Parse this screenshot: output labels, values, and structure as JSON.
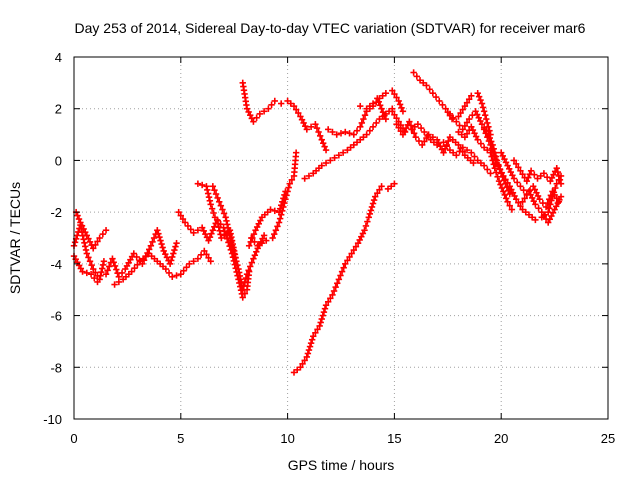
{
  "chart_data": {
    "type": "scatter",
    "title": "Day 253 of 2014, Sidereal Day-to-day VTEC variation (SDTVAR) for receiver mar6",
    "xlabel": "GPS time / hours",
    "ylabel": "SDTVAR / TECUs",
    "xlim": [
      0,
      25
    ],
    "ylim": [
      -10,
      4
    ],
    "xticks": [
      "0",
      "5",
      "10",
      "15",
      "20",
      "25"
    ],
    "yticks": [
      "4",
      "2",
      "0",
      "-2",
      "-4",
      "-6",
      "-8",
      "-10"
    ],
    "grid": true,
    "marker": "+",
    "color": "#ff0000",
    "series": [
      {
        "points": [
          [
            0,
            -3.3
          ],
          [
            0.3,
            -2.5
          ],
          [
            0.6,
            -3.6
          ],
          [
            0.9,
            -4.2
          ],
          [
            1.2,
            -4.6
          ],
          [
            1.4,
            -3.9
          ]
        ]
      },
      {
        "points": [
          [
            0,
            -3.7
          ],
          [
            0.4,
            -4.3
          ],
          [
            0.8,
            -4.4
          ],
          [
            1.1,
            -4.7
          ]
        ]
      },
      {
        "points": [
          [
            0.1,
            -2.0
          ],
          [
            0.3,
            -2.4
          ],
          [
            0.6,
            -2.9
          ],
          [
            0.9,
            -3.4
          ],
          [
            1.2,
            -3.0
          ],
          [
            1.5,
            -2.7
          ]
        ]
      },
      {
        "points": [
          [
            1.5,
            -4.4
          ],
          [
            1.8,
            -3.8
          ],
          [
            2.1,
            -4.5
          ],
          [
            2.4,
            -4.2
          ],
          [
            2.8,
            -3.6
          ],
          [
            3.2,
            -4.0
          ],
          [
            3.6,
            -3.3
          ],
          [
            3.9,
            -2.7
          ],
          [
            4.2,
            -3.5
          ],
          [
            4.5,
            -4.0
          ],
          [
            4.8,
            -3.2
          ]
        ]
      },
      {
        "points": [
          [
            1.9,
            -4.8
          ],
          [
            2.3,
            -4.6
          ],
          [
            2.7,
            -4.3
          ],
          [
            3.1,
            -3.9
          ],
          [
            3.5,
            -3.6
          ],
          [
            3.9,
            -3.9
          ],
          [
            4.3,
            -4.2
          ],
          [
            4.6,
            -4.5
          ],
          [
            5.0,
            -4.4
          ],
          [
            5.4,
            -4.0
          ],
          [
            5.8,
            -3.8
          ],
          [
            6.1,
            -3.5
          ],
          [
            6.4,
            -3.9
          ]
        ]
      },
      {
        "points": [
          [
            4.9,
            -2.0
          ],
          [
            5.2,
            -2.4
          ],
          [
            5.6,
            -2.8
          ],
          [
            6.0,
            -2.6
          ],
          [
            6.3,
            -3.1
          ],
          [
            6.7,
            -2.3
          ],
          [
            6.9,
            -3.0
          ],
          [
            7.3,
            -2.7
          ],
          [
            7.6,
            -3.9
          ]
        ]
      },
      {
        "points": [
          [
            5.8,
            -0.9
          ],
          [
            6.2,
            -1.0
          ],
          [
            6.4,
            -1.7
          ],
          [
            6.6,
            -2.2
          ],
          [
            7.0,
            -2.6
          ],
          [
            7.4,
            -3.6
          ],
          [
            7.7,
            -4.6
          ],
          [
            7.9,
            -5.3
          ],
          [
            8.1,
            -5.0
          ],
          [
            8.2,
            -4.3
          ]
        ]
      },
      {
        "points": [
          [
            6.5,
            -1.0
          ],
          [
            6.8,
            -1.6
          ],
          [
            7.1,
            -2.2
          ],
          [
            7.4,
            -3.3
          ],
          [
            7.7,
            -4.2
          ],
          [
            7.9,
            -5.0
          ],
          [
            8.1,
            -4.4
          ],
          [
            8.4,
            -3.8
          ],
          [
            8.6,
            -3.4
          ],
          [
            8.9,
            -2.9
          ]
        ]
      },
      {
        "points": [
          [
            7.9,
            3.0
          ],
          [
            8.1,
            2.0
          ],
          [
            8.4,
            1.5
          ],
          [
            8.7,
            1.8
          ],
          [
            9.1,
            2.0
          ],
          [
            9.4,
            2.3
          ],
          [
            9.7,
            2.2
          ],
          [
            10.0,
            2.3
          ],
          [
            10.3,
            2.1
          ],
          [
            10.6,
            1.7
          ],
          [
            10.9,
            1.2
          ],
          [
            11.3,
            1.4
          ],
          [
            11.6,
            0.8
          ],
          [
            11.8,
            0.4
          ]
        ]
      },
      {
        "points": [
          [
            8.3,
            -3.0
          ],
          [
            8.6,
            -3.3
          ],
          [
            9.0,
            -3.1
          ],
          [
            9.3,
            -3.0
          ],
          [
            9.6,
            -2.4
          ],
          [
            9.9,
            -1.5
          ],
          [
            10.1,
            -0.9
          ],
          [
            10.3,
            -0.6
          ],
          [
            10.4,
            0.3
          ]
        ]
      },
      {
        "points": [
          [
            8.2,
            -3.3
          ],
          [
            8.5,
            -2.7
          ],
          [
            8.8,
            -2.2
          ],
          [
            9.2,
            -1.9
          ],
          [
            9.6,
            -2.0
          ],
          [
            9.9,
            -1.2
          ]
        ]
      },
      {
        "points": [
          [
            10.3,
            -8.2
          ],
          [
            10.6,
            -8.0
          ],
          [
            10.9,
            -7.6
          ],
          [
            11.2,
            -6.8
          ],
          [
            11.5,
            -6.4
          ],
          [
            11.8,
            -5.6
          ],
          [
            12.1,
            -5.2
          ],
          [
            12.4,
            -4.6
          ],
          [
            12.7,
            -4.0
          ],
          [
            13.0,
            -3.6
          ],
          [
            13.3,
            -3.2
          ],
          [
            13.6,
            -2.7
          ],
          [
            13.8,
            -2.2
          ],
          [
            14.1,
            -1.4
          ],
          [
            14.4,
            -1.0
          ],
          [
            14.7,
            -1.1
          ],
          [
            15.0,
            -0.9
          ]
        ]
      },
      {
        "points": [
          [
            10.8,
            -0.7
          ],
          [
            11.2,
            -0.5
          ],
          [
            11.6,
            -0.2
          ],
          [
            12.0,
            0.0
          ],
          [
            12.4,
            0.2
          ],
          [
            12.8,
            0.4
          ],
          [
            13.1,
            0.6
          ],
          [
            13.4,
            0.8
          ],
          [
            13.7,
            1.0
          ],
          [
            14.0,
            1.3
          ],
          [
            14.3,
            1.6
          ],
          [
            14.6,
            1.8
          ],
          [
            14.9,
            2.0
          ]
        ]
      },
      {
        "points": [
          [
            11.9,
            1.2
          ],
          [
            12.3,
            1.0
          ],
          [
            12.7,
            1.1
          ],
          [
            13.1,
            1.0
          ],
          [
            13.4,
            1.3
          ],
          [
            13.7,
            1.9
          ],
          [
            14.0,
            2.1
          ],
          [
            14.3,
            2.4
          ],
          [
            14.6,
            2.6
          ],
          [
            14.9,
            2.7
          ],
          [
            15.2,
            2.3
          ],
          [
            15.4,
            1.9
          ]
        ]
      },
      {
        "points": [
          [
            13.4,
            2.1
          ],
          [
            13.7,
            2.0
          ],
          [
            14.0,
            2.2
          ],
          [
            14.2,
            2.4
          ],
          [
            14.4,
            2.0
          ],
          [
            14.6,
            1.6
          ]
        ]
      },
      {
        "points": [
          [
            14.9,
            1.9
          ],
          [
            15.2,
            1.5
          ],
          [
            15.5,
            1.1
          ],
          [
            15.8,
            1.2
          ],
          [
            16.1,
            1.4
          ],
          [
            16.4,
            1.1
          ],
          [
            16.7,
            0.8
          ],
          [
            17.0,
            0.6
          ],
          [
            17.3,
            0.7
          ],
          [
            17.6,
            0.4
          ],
          [
            17.9,
            0.2
          ],
          [
            18.2,
            0.5
          ],
          [
            18.6,
            0.3
          ],
          [
            18.9,
            0.0
          ],
          [
            19.2,
            -0.2
          ],
          [
            19.5,
            -0.5
          ]
        ]
      },
      {
        "points": [
          [
            15.1,
            1.4
          ],
          [
            15.4,
            1.0
          ],
          [
            15.7,
            1.5
          ],
          [
            16.0,
            0.9
          ],
          [
            16.3,
            0.6
          ],
          [
            16.6,
            1.0
          ],
          [
            17.0,
            0.8
          ],
          [
            17.3,
            0.3
          ],
          [
            17.6,
            0.9
          ],
          [
            18.0,
            0.6
          ],
          [
            18.3,
            0.2
          ],
          [
            18.7,
            -0.1
          ]
        ]
      },
      {
        "points": [
          [
            15.9,
            3.4
          ],
          [
            16.2,
            3.1
          ],
          [
            16.5,
            2.9
          ],
          [
            16.8,
            2.6
          ],
          [
            17.1,
            2.3
          ],
          [
            17.4,
            2.0
          ],
          [
            17.7,
            1.6
          ],
          [
            18.0,
            1.7
          ],
          [
            18.3,
            2.1
          ],
          [
            18.6,
            2.5
          ],
          [
            18.9,
            2.6
          ],
          [
            19.1,
            2.2
          ],
          [
            19.3,
            1.6
          ],
          [
            19.5,
            1.0
          ]
        ]
      },
      {
        "points": [
          [
            17.6,
            1.8
          ],
          [
            17.9,
            1.5
          ],
          [
            18.2,
            1.2
          ],
          [
            18.5,
            1.6
          ],
          [
            18.8,
            1.9
          ],
          [
            19.1,
            1.4
          ],
          [
            19.4,
            1.0
          ],
          [
            19.6,
            0.6
          ],
          [
            19.8,
            0.0
          ],
          [
            20.0,
            -0.5
          ],
          [
            20.2,
            -0.9
          ],
          [
            20.4,
            -1.3
          ]
        ]
      },
      {
        "points": [
          [
            18.0,
            1.1
          ],
          [
            18.3,
            0.9
          ],
          [
            18.6,
            1.3
          ],
          [
            18.9,
            0.8
          ],
          [
            19.2,
            0.5
          ],
          [
            19.5,
            0.3
          ],
          [
            19.7,
            -0.3
          ],
          [
            19.9,
            -0.8
          ],
          [
            20.1,
            -1.2
          ],
          [
            20.3,
            -1.6
          ],
          [
            20.5,
            -1.9
          ]
        ]
      },
      {
        "points": [
          [
            19.2,
            1.2
          ],
          [
            19.5,
            0.6
          ],
          [
            19.8,
            -0.1
          ],
          [
            20.1,
            -0.6
          ],
          [
            20.4,
            -1.0
          ],
          [
            20.7,
            -1.5
          ],
          [
            21.0,
            -1.9
          ],
          [
            21.3,
            -2.1
          ],
          [
            21.6,
            -2.3
          ],
          [
            21.9,
            -2.2
          ],
          [
            22.2,
            -2.0
          ],
          [
            22.4,
            -1.4
          ],
          [
            22.6,
            -0.9
          ],
          [
            22.8,
            -0.6
          ]
        ]
      },
      {
        "points": [
          [
            20.0,
            0.3
          ],
          [
            20.3,
            -0.2
          ],
          [
            20.6,
            -0.7
          ],
          [
            20.9,
            -1.0
          ],
          [
            21.2,
            -1.3
          ],
          [
            21.5,
            -1.0
          ],
          [
            21.8,
            -1.5
          ],
          [
            22.1,
            -1.8
          ],
          [
            22.4,
            -1.2
          ],
          [
            22.7,
            -1.6
          ]
        ]
      },
      {
        "points": [
          [
            20.6,
            0.0
          ],
          [
            20.9,
            -0.4
          ],
          [
            21.2,
            -0.8
          ],
          [
            21.4,
            -0.4
          ],
          [
            21.7,
            -0.7
          ],
          [
            22.0,
            -0.5
          ],
          [
            22.3,
            -0.8
          ],
          [
            22.6,
            -0.3
          ],
          [
            22.8,
            -0.9
          ]
        ]
      },
      {
        "points": [
          [
            21.0,
            -1.6
          ],
          [
            21.3,
            -1.2
          ],
          [
            21.6,
            -1.7
          ],
          [
            21.9,
            -2.0
          ],
          [
            22.2,
            -2.4
          ],
          [
            22.5,
            -1.9
          ],
          [
            22.8,
            -1.4
          ]
        ]
      }
    ]
  }
}
